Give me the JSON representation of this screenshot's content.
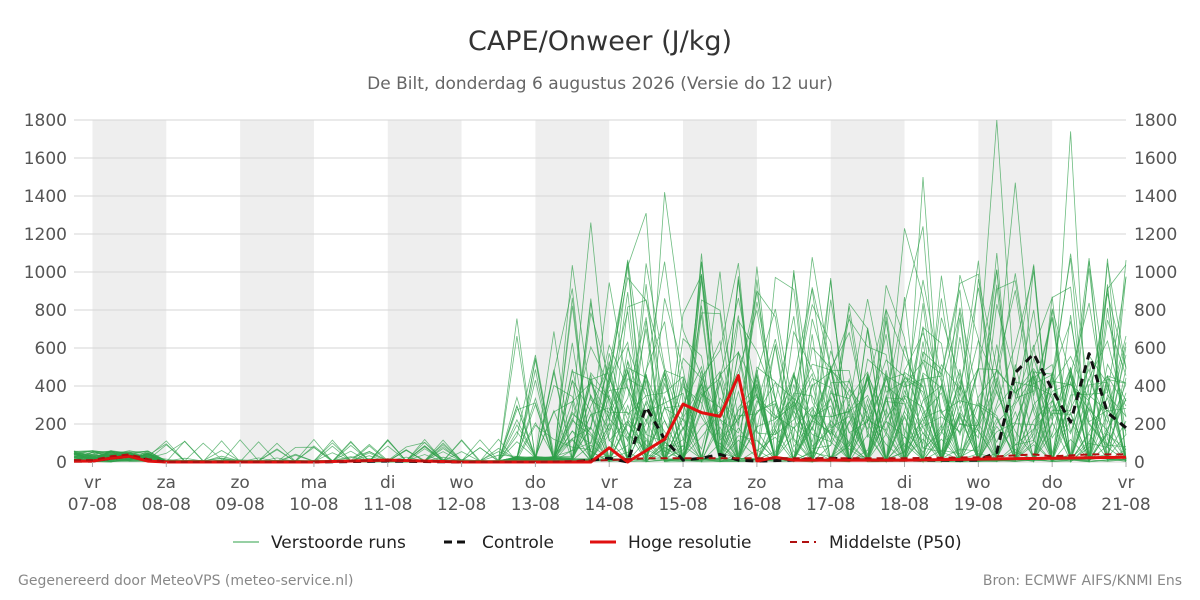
{
  "chart_data": {
    "type": "line",
    "title": "CAPE/Onweer (J/kg)",
    "subtitle": "De Bilt, donderdag  6 augustus 2026 (Versie do 12 uur)",
    "ylim": [
      0,
      1800
    ],
    "y_ticks": [
      0,
      200,
      400,
      600,
      800,
      1000,
      1200,
      1400,
      1600,
      1800
    ],
    "x_unit": "days since 07-08 00:00",
    "xlim": [
      -0.25,
      14.0
    ],
    "days": [
      {
        "weekday": "vr",
        "date": "07-08"
      },
      {
        "weekday": "za",
        "date": "08-08"
      },
      {
        "weekday": "zo",
        "date": "09-08"
      },
      {
        "weekday": "ma",
        "date": "10-08"
      },
      {
        "weekday": "di",
        "date": "11-08"
      },
      {
        "weekday": "wo",
        "date": "12-08"
      },
      {
        "weekday": "do",
        "date": "13-08"
      },
      {
        "weekday": "vr",
        "date": "14-08"
      },
      {
        "weekday": "za",
        "date": "15-08"
      },
      {
        "weekday": "zo",
        "date": "16-08"
      },
      {
        "weekday": "ma",
        "date": "17-08"
      },
      {
        "weekday": "di",
        "date": "18-08"
      },
      {
        "weekday": "wo",
        "date": "19-08"
      },
      {
        "weekday": "do",
        "date": "20-08"
      },
      {
        "weekday": "vr",
        "date": "21-08"
      }
    ],
    "weekend_shading": [
      [
        0,
        1
      ],
      [
        2,
        3
      ],
      [
        4,
        5
      ],
      [
        6,
        7
      ],
      [
        8,
        9
      ],
      [
        10,
        11
      ],
      [
        12,
        13
      ],
      [
        14,
        15
      ],
      [
        16,
        17
      ]
    ],
    "grid": true,
    "legend_position": "bottom",
    "series": [
      {
        "name": "Controle",
        "style": "dashed",
        "color": "#111111",
        "x": [
          -0.25,
          0,
          0.25,
          0.5,
          0.75,
          1,
          2,
          3,
          4,
          5,
          6,
          6.5,
          7,
          7.25,
          7.5,
          7.75,
          8,
          8.25,
          8.5,
          8.75,
          9,
          9.5,
          10,
          10.5,
          11,
          11.5,
          12,
          12.25,
          12.5,
          12.75,
          13,
          13.25,
          13.5,
          13.75,
          14
        ],
        "y": [
          5,
          5,
          20,
          30,
          10,
          0,
          0,
          0,
          5,
          0,
          0,
          0,
          20,
          0,
          290,
          120,
          10,
          20,
          40,
          10,
          5,
          10,
          20,
          10,
          10,
          10,
          10,
          50,
          470,
          570,
          380,
          210,
          570,
          260,
          180
        ]
      },
      {
        "name": "Hoge resolutie",
        "style": "solid",
        "color": "#e01010",
        "x": [
          -0.25,
          0,
          0.25,
          0.5,
          0.75,
          1,
          2,
          3,
          4,
          5,
          6,
          6.5,
          6.75,
          7,
          7.25,
          7.5,
          7.75,
          8,
          8.25,
          8.5,
          8.75,
          9,
          9.25,
          9.5,
          10,
          11,
          12,
          13,
          14
        ],
        "y": [
          5,
          5,
          20,
          30,
          5,
          0,
          0,
          0,
          10,
          0,
          0,
          0,
          0,
          75,
          0,
          60,
          120,
          305,
          260,
          240,
          455,
          5,
          25,
          10,
          10,
          10,
          15,
          20,
          25
        ]
      },
      {
        "name": "Middelste (P50)",
        "style": "dashed",
        "color": "#b01010",
        "x": [
          -0.25,
          0,
          0.25,
          0.5,
          0.75,
          1,
          2,
          3,
          4,
          5,
          6,
          7,
          7.5,
          8,
          9,
          10,
          11,
          12,
          12.75,
          13,
          13.5,
          14
        ],
        "y": [
          10,
          10,
          30,
          40,
          15,
          0,
          0,
          0,
          10,
          0,
          0,
          10,
          20,
          20,
          20,
          20,
          20,
          25,
          40,
          30,
          40,
          40
        ]
      }
    ],
    "ensemble": {
      "name": "Verstoorde runs",
      "color": "#2fa04a",
      "member_count": 50,
      "peak_values": [
        1800,
        1740,
        1500,
        1470,
        1420,
        1310,
        1260,
        1240,
        1230,
        1040,
        1010,
        960,
        910,
        860
      ]
    }
  },
  "legend": {
    "ensemble_label": "Verstoorde runs",
    "control_label": "Controle",
    "hires_label": "Hoge resolutie",
    "median_label": "Middelste (P50)"
  },
  "footer": {
    "left": "Gegenereerd door MeteoVPS (meteo-service.nl)",
    "right": "Bron: ECMWF AIFS/KNMI Ens"
  }
}
